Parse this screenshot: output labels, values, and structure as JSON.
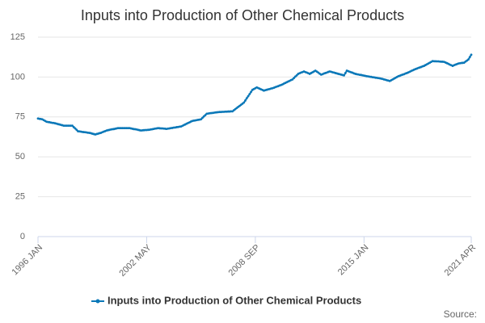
{
  "chart_data": {
    "type": "line",
    "title": "Inputs into Production of Other Chemical Products",
    "source": "Source:",
    "categories": [
      "1996 JAN",
      null,
      null,
      null,
      null,
      null,
      null,
      null,
      null,
      null,
      null,
      null,
      null,
      null,
      null,
      null,
      null,
      null,
      null,
      null,
      null,
      null,
      null,
      null,
      null,
      null,
      null,
      null,
      null,
      null,
      null,
      null,
      null,
      null,
      null,
      null,
      null,
      null,
      null,
      null,
      null,
      null,
      null,
      null,
      null,
      null,
      null,
      null,
      null,
      null,
      null,
      null,
      null,
      null,
      null,
      null,
      null,
      null,
      null,
      null,
      null,
      null,
      null,
      null,
      null,
      null,
      null,
      null,
      null,
      null,
      null,
      null,
      null,
      null,
      null,
      null,
      "2002 MAY",
      null,
      null,
      null,
      null,
      null,
      null,
      null,
      null,
      null,
      null,
      null,
      null,
      null,
      null,
      null,
      null,
      null,
      null,
      null,
      null,
      null,
      null,
      null,
      null,
      null,
      null,
      null,
      null,
      null,
      null,
      null,
      null,
      null,
      null,
      null,
      null,
      null,
      null,
      null,
      null,
      null,
      null,
      null,
      null,
      null,
      null,
      null,
      null,
      null,
      null,
      null,
      null,
      null,
      null,
      null,
      null,
      null,
      null,
      null,
      null,
      null,
      null,
      null,
      null,
      null,
      null,
      null,
      null,
      null,
      null,
      null,
      null,
      null,
      null,
      null,
      "2008 SEP",
      null,
      null,
      null,
      null,
      null,
      null,
      null,
      null,
      null,
      null,
      null,
      null,
      null,
      null,
      null,
      null,
      null,
      null,
      null,
      null,
      null,
      null,
      null,
      null,
      null,
      null,
      null,
      null,
      null,
      null,
      null,
      null,
      null,
      null,
      null,
      null,
      null,
      null,
      null,
      null,
      null,
      null,
      null,
      null,
      null,
      null,
      null,
      null,
      null,
      null,
      null,
      null,
      null,
      null,
      null,
      null,
      null,
      null,
      null,
      null,
      null,
      null,
      null,
      null,
      null,
      null,
      null,
      null,
      null,
      null,
      null,
      null,
      null,
      null,
      null,
      "2015 JAN",
      null,
      null,
      null,
      null,
      null,
      null,
      null,
      null,
      null,
      null,
      null,
      null,
      null,
      null,
      null,
      null,
      null,
      null,
      null,
      null,
      null,
      null,
      null,
      null,
      null,
      null,
      null,
      null,
      null,
      null,
      null,
      null,
      null,
      null,
      null,
      null,
      null,
      null,
      null,
      null,
      null,
      null,
      null,
      null,
      null,
      null,
      null,
      null,
      null,
      null,
      null,
      null,
      null,
      null,
      null,
      null,
      null,
      null,
      null,
      null,
      null,
      null,
      null,
      null,
      null,
      null,
      null,
      null,
      null,
      null,
      null,
      null,
      null,
      null,
      "2021 APR"
    ],
    "series": [
      {
        "name": "Inputs into Production of Other Chemical Products",
        "color": "#0b78b8",
        "values": [
          74,
          73.8,
          73.7,
          73.5,
          73,
          72.5,
          72,
          71.8,
          71.7,
          71.5,
          71.3,
          71.2,
          71,
          70.8,
          70.5,
          70.3,
          70,
          69.8,
          69.5,
          69.5,
          69.5,
          69.5,
          69.5,
          69.5,
          69.5,
          68.6,
          67.8,
          66.9,
          66,
          65.9,
          65.8,
          65.6,
          65.5,
          65.4,
          65.3,
          65.1,
          65,
          64.8,
          64.5,
          64.3,
          64,
          64.3,
          64.5,
          64.8,
          65,
          65.4,
          65.8,
          66.1,
          66.5,
          66.7,
          66.9,
          67.1,
          67.3,
          67.4,
          67.6,
          67.8,
          68,
          68,
          68,
          68,
          68,
          68,
          68,
          68,
          68,
          67.8,
          67.6,
          67.4,
          67.3,
          67.1,
          66.9,
          66.7,
          66.5,
          66.6,
          66.7,
          66.8,
          66.8,
          66.9,
          67,
          67.2,
          67.3,
          67.5,
          67.7,
          67.8,
          68,
          67.9,
          67.8,
          67.8,
          67.7,
          67.6,
          67.5,
          67.7,
          67.8,
          68,
          68.1,
          68.3,
          68.4,
          68.6,
          68.7,
          68.9,
          69,
          69.4,
          69.9,
          70.3,
          70.8,
          71.2,
          71.6,
          72.1,
          72.5,
          72.7,
          72.8,
          73,
          73.2,
          73.3,
          73.5,
          74.4,
          75.3,
          76.1,
          77,
          77.1,
          77.3,
          77.4,
          77.5,
          77.6,
          77.8,
          77.9,
          78,
          78.1,
          78.1,
          78.2,
          78.2,
          78.3,
          78.3,
          78.4,
          78.4,
          78.5,
          78.5,
          79.2,
          79.9,
          80.6,
          81.3,
          81.9,
          82.6,
          83.3,
          84,
          85.3,
          86.7,
          88,
          89.3,
          90.7,
          92,
          92.5,
          93,
          93.5,
          93.1,
          92.7,
          92.3,
          91.9,
          91.5,
          91.8,
          92,
          92.3,
          92.5,
          92.8,
          93,
          93.3,
          93.7,
          94,
          94.3,
          94.7,
          95,
          95.4,
          95.9,
          96.3,
          96.8,
          97.2,
          97.6,
          98.1,
          98.5,
          99.4,
          100.3,
          101.1,
          102,
          102.4,
          102.8,
          103.1,
          103.5,
          103.1,
          102.8,
          102.4,
          102,
          102.5,
          103,
          103.5,
          104,
          103.4,
          102.8,
          102.1,
          101.5,
          101.8,
          102.2,
          102.5,
          102.8,
          103.2,
          103.5,
          103.3,
          103,
          102.8,
          102.5,
          102.3,
          102,
          101.8,
          101.5,
          101.3,
          101,
          102.5,
          104,
          103.7,
          103.3,
          103,
          102.7,
          102.3,
          102,
          101.8,
          101.6,
          101.4,
          101.3,
          101.1,
          100.9,
          100.7,
          100.5,
          100.4,
          100.2,
          100.1,
          99.9,
          99.8,
          99.6,
          99.5,
          99.3,
          99.2,
          99,
          98.8,
          98.5,
          98.3,
          98,
          97.8,
          97.5,
          98,
          98.5,
          99,
          99.5,
          100,
          100.5,
          100.8,
          101.2,
          101.5,
          101.8,
          102.2,
          102.5,
          102.9,
          103.3,
          103.8,
          104.2,
          104.6,
          105,
          105.3,
          105.7,
          106,
          106.3,
          106.7,
          107,
          107.5,
          108,
          108.5,
          109,
          109.5,
          110,
          109.9,
          109.9,
          109.8,
          109.8,
          109.7,
          109.6,
          109.6,
          109.5,
          109.1,
          108.7,
          108.3,
          107.8,
          107.4,
          107,
          107.4,
          107.8,
          108.1,
          108.5,
          108.6,
          108.8,
          108.9,
          109,
          109.7,
          110.3,
          111,
          112.5,
          114
        ]
      }
    ],
    "ylim": [
      0,
      125
    ],
    "yticks": [
      0,
      25,
      50,
      75,
      100,
      125
    ],
    "grid": true,
    "legend": "bottom"
  }
}
